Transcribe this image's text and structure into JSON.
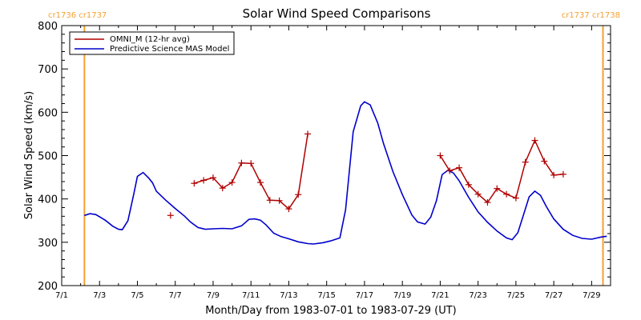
{
  "chart_data": {
    "type": "line",
    "title": "Solar Wind Speed Comparisons",
    "xlabel": "Month/Day from 1983-07-01 to 1983-07-29 (UT)",
    "ylabel": "Solar Wind Speed (km/s)",
    "xlim": [
      0,
      29
    ],
    "ylim": [
      200,
      800
    ],
    "grid": false,
    "legend_position": "top-left",
    "x_tick_values": [
      0,
      2,
      4,
      6,
      8,
      10,
      12,
      14,
      16,
      18,
      20,
      22,
      24,
      26,
      28
    ],
    "x_tick_labels": [
      "7/1",
      "7/3",
      "7/5",
      "7/7",
      "7/9",
      "7/11",
      "7/13",
      "7/15",
      "7/17",
      "7/19",
      "7/21",
      "7/23",
      "7/25",
      "7/27",
      "7/29"
    ],
    "y_ticks": [
      200,
      300,
      400,
      500,
      600,
      700,
      800
    ],
    "vertical_markers": [
      {
        "x": 1.2,
        "label": "cr1736 cr1737",
        "color": "#f5a030"
      },
      {
        "x": 28.6,
        "label": "cr1737 cr1738",
        "color": "#f5a030"
      }
    ],
    "series": [
      {
        "name": "OMNI_M (12-hr avg)",
        "color": "#b00000",
        "marker": "+",
        "segments": [
          [
            [
              5.75,
              362
            ]
          ],
          [
            [
              7.0,
              436
            ],
            [
              7.5,
              443
            ],
            [
              8.0,
              449
            ],
            [
              8.5,
              425
            ],
            [
              9.0,
              438
            ],
            [
              9.5,
              483
            ],
            [
              10.0,
              482
            ],
            [
              10.5,
              438
            ],
            [
              11.0,
              397
            ],
            [
              11.5,
              396
            ],
            [
              12.0,
              377
            ],
            [
              12.5,
              410
            ],
            [
              13.0,
              550
            ]
          ],
          [
            [
              20.0,
              500
            ],
            [
              20.5,
              465
            ],
            [
              21.0,
              472
            ],
            [
              21.5,
              433
            ],
            [
              22.0,
              411
            ],
            [
              22.5,
              392
            ],
            [
              23.0,
              424
            ],
            [
              23.5,
              411
            ],
            [
              24.0,
              402
            ],
            [
              24.5,
              485
            ],
            [
              25.0,
              535
            ],
            [
              25.5,
              487
            ],
            [
              26.0,
              455
            ],
            [
              26.5,
              457
            ]
          ]
        ]
      },
      {
        "name": "Predictive Science MAS Model",
        "color": "#0000cc",
        "marker": "none",
        "points": [
          [
            1.2,
            362
          ],
          [
            1.5,
            366
          ],
          [
            1.8,
            364
          ],
          [
            2.3,
            351
          ],
          [
            2.7,
            337
          ],
          [
            3.0,
            330
          ],
          [
            3.2,
            329
          ],
          [
            3.5,
            350
          ],
          [
            3.8,
            410
          ],
          [
            4.0,
            452
          ],
          [
            4.3,
            461
          ],
          [
            4.6,
            448
          ],
          [
            4.8,
            437
          ],
          [
            5.0,
            418
          ],
          [
            5.5,
            397
          ],
          [
            6.0,
            378
          ],
          [
            6.5,
            360
          ],
          [
            6.8,
            347
          ],
          [
            7.2,
            334
          ],
          [
            7.6,
            330
          ],
          [
            8.0,
            331
          ],
          [
            8.5,
            332
          ],
          [
            9.0,
            331
          ],
          [
            9.5,
            338
          ],
          [
            9.9,
            353
          ],
          [
            10.2,
            354
          ],
          [
            10.5,
            351
          ],
          [
            10.8,
            340
          ],
          [
            11.2,
            321
          ],
          [
            11.6,
            313
          ],
          [
            12.0,
            308
          ],
          [
            12.5,
            301
          ],
          [
            13.0,
            297
          ],
          [
            13.3,
            296
          ],
          [
            13.8,
            299
          ],
          [
            14.2,
            303
          ],
          [
            14.7,
            310
          ],
          [
            15.0,
            375
          ],
          [
            15.4,
            555
          ],
          [
            15.8,
            615
          ],
          [
            16.0,
            624
          ],
          [
            16.3,
            617
          ],
          [
            16.7,
            575
          ],
          [
            17.0,
            528
          ],
          [
            17.5,
            463
          ],
          [
            18.0,
            410
          ],
          [
            18.5,
            363
          ],
          [
            18.8,
            347
          ],
          [
            19.2,
            342
          ],
          [
            19.5,
            358
          ],
          [
            19.8,
            396
          ],
          [
            20.1,
            456
          ],
          [
            20.4,
            466
          ],
          [
            20.7,
            460
          ],
          [
            21.0,
            442
          ],
          [
            21.5,
            404
          ],
          [
            22.0,
            370
          ],
          [
            22.5,
            346
          ],
          [
            23.0,
            326
          ],
          [
            23.5,
            310
          ],
          [
            23.8,
            306
          ],
          [
            24.1,
            322
          ],
          [
            24.4,
            363
          ],
          [
            24.7,
            405
          ],
          [
            25.0,
            418
          ],
          [
            25.3,
            408
          ],
          [
            25.6,
            383
          ],
          [
            26.0,
            354
          ],
          [
            26.5,
            330
          ],
          [
            27.0,
            316
          ],
          [
            27.5,
            309
          ],
          [
            28.0,
            307
          ],
          [
            28.5,
            312
          ],
          [
            28.8,
            314
          ]
        ]
      }
    ]
  }
}
